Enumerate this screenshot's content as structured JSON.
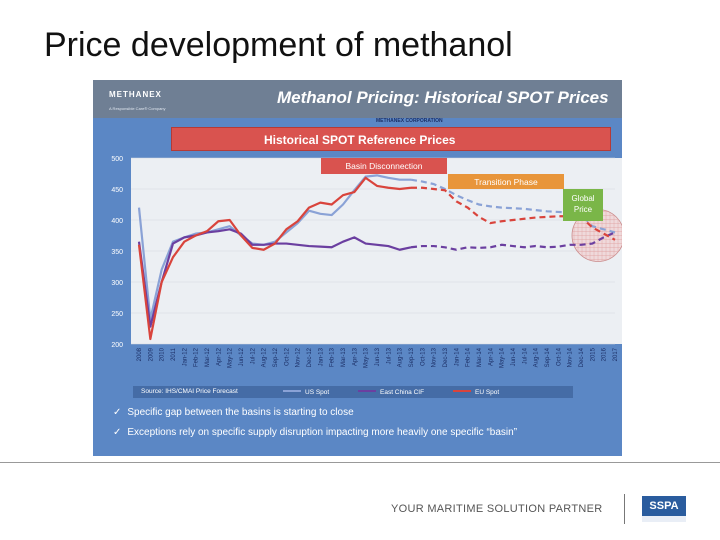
{
  "slide": {
    "title": "Price development of methanol"
  },
  "panel": {
    "logo": "METHANEX",
    "logo_sub": "A Responsible Care® Company",
    "title": "Methanol Pricing: Historical SPOT Prices",
    "corp": "METHANEX CORPORATION",
    "banner": "Historical SPOT Reference Prices",
    "source": "Source: IHS/CMAI Price Forecast",
    "bullets": [
      "Specific gap between the basins is starting to close",
      "Exceptions rely on specific supply disruption impacting more heavily one specific “basin”"
    ]
  },
  "chart_data": {
    "type": "line",
    "ylim": [
      200,
      500
    ],
    "yticks": [
      200,
      250,
      300,
      350,
      400,
      450,
      500
    ],
    "categories": [
      "2008",
      "2009",
      "2010",
      "2011",
      "Jan-12",
      "Feb-12",
      "Mar-12",
      "Apr-12",
      "May-12",
      "Jun-12",
      "Jul-12",
      "Aug-12",
      "Sep-12",
      "Oct-12",
      "Nov-12",
      "Dec-12",
      "Jan-13",
      "Feb-13",
      "Mar-13",
      "Apr-13",
      "May-13",
      "Jun-13",
      "Jul-13",
      "Aug-13",
      "Sep-13",
      "Oct-13",
      "Nov-13",
      "Dec-13",
      "Jan-14",
      "Feb-14",
      "Mar-14",
      "Apr-14",
      "May-14",
      "Jun-14",
      "Jul-14",
      "Aug-14",
      "Sep-14",
      "Oct-14",
      "Nov-14",
      "Dec-14",
      "2015",
      "2016",
      "2017"
    ],
    "actual_end_index": 24,
    "series": [
      {
        "name": "US Spot",
        "color": "#8aa2d6",
        "values": [
          420,
          240,
          320,
          365,
          372,
          378,
          380,
          385,
          390,
          375,
          362,
          360,
          365,
          380,
          395,
          415,
          410,
          408,
          425,
          448,
          470,
          472,
          468,
          465,
          465,
          462,
          458,
          450,
          440,
          432,
          425,
          422,
          420,
          419,
          418,
          416,
          414,
          413,
          412,
          410,
          390,
          385,
          380
        ]
      },
      {
        "name": "East China CIF",
        "color": "#6b3fa0",
        "values": [
          365,
          228,
          300,
          362,
          372,
          375,
          380,
          382,
          385,
          378,
          360,
          360,
          362,
          362,
          360,
          358,
          357,
          356,
          365,
          372,
          362,
          360,
          358,
          352,
          356,
          358,
          358,
          356,
          352,
          356,
          355,
          356,
          360,
          358,
          356,
          358,
          356,
          357,
          360,
          360,
          362,
          372,
          380
        ]
      },
      {
        "name": "EU Spot",
        "color": "#d9443c",
        "values": [
          360,
          208,
          300,
          340,
          365,
          375,
          382,
          398,
          400,
          375,
          355,
          352,
          362,
          385,
          398,
          420,
          428,
          425,
          440,
          445,
          468,
          455,
          452,
          450,
          452,
          452,
          450,
          448,
          430,
          420,
          405,
          395,
          398,
          400,
          402,
          404,
          405,
          406,
          406,
          405,
          388,
          378,
          368
        ]
      }
    ],
    "annotations": [
      {
        "text": "Basin Disconnection",
        "color": "#d9534f"
      },
      {
        "text": "Transition Phase",
        "color": "#e8953a"
      },
      {
        "text": "Global Price",
        "color": "#7ab648"
      }
    ],
    "legend_position": "bottom"
  },
  "footer": {
    "tagline": "YOUR MARITIME SOLUTION PARTNER",
    "logo": "SSPA"
  }
}
